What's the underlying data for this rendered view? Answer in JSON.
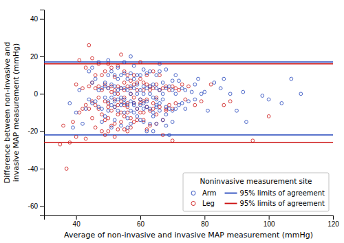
{
  "chart_data": {
    "type": "scatter",
    "xlabel": "Average of non-invasive and invasive MAP measurement (mmHg)",
    "ylabel": "Difference between non-invasive and\ninvasive MAP measurement (mmHg)",
    "xlim": [
      30,
      120
    ],
    "ylim": [
      -65,
      45
    ],
    "xticks": [
      40,
      60,
      80,
      100,
      120
    ],
    "yticks": [
      -60,
      -40,
      -20,
      0,
      20,
      40
    ],
    "grid": false,
    "legend": "lower right",
    "legend_title": "Noninvasive measurement site",
    "series": [
      {
        "name": "Arm",
        "type": "scatter",
        "marker": "circle",
        "color": "#2244BB",
        "x": [
          38,
          39,
          40,
          41,
          42,
          43,
          44,
          44,
          45,
          45,
          45,
          46,
          46,
          47,
          47,
          47,
          48,
          48,
          48,
          49,
          49,
          49,
          49,
          50,
          50,
          50,
          50,
          50,
          51,
          51,
          51,
          51,
          51,
          52,
          52,
          52,
          52,
          52,
          52,
          53,
          53,
          53,
          53,
          53,
          54,
          54,
          54,
          54,
          54,
          55,
          55,
          55,
          55,
          55,
          55,
          56,
          56,
          56,
          56,
          56,
          57,
          57,
          57,
          57,
          57,
          57,
          57,
          58,
          58,
          58,
          58,
          58,
          58,
          59,
          59,
          59,
          59,
          59,
          60,
          60,
          60,
          60,
          60,
          61,
          61,
          61,
          61,
          61,
          61,
          62,
          62,
          62,
          62,
          62,
          63,
          63,
          63,
          63,
          63,
          64,
          64,
          64,
          64,
          64,
          65,
          65,
          65,
          65,
          65,
          65,
          66,
          66,
          66,
          66,
          66,
          67,
          67,
          67,
          67,
          68,
          68,
          68,
          68,
          68,
          69,
          69,
          69,
          70,
          70,
          70,
          70,
          71,
          71,
          71,
          72,
          72,
          73,
          73,
          74,
          74,
          75,
          76,
          77,
          77,
          78,
          79,
          80,
          81,
          83,
          85,
          86,
          88,
          90,
          92,
          93,
          98,
          100,
          104,
          107,
          110
        ],
        "values": [
          -5,
          -18,
          -10,
          2,
          -16,
          -8,
          12,
          -3,
          -5,
          6,
          14,
          -4,
          8,
          17,
          2,
          -7,
          -8,
          3,
          -15,
          4,
          -12,
          6,
          -2,
          -9,
          -4,
          3,
          10,
          18,
          -6,
          -2,
          5,
          12,
          -18,
          0,
          -7,
          -14,
          4,
          10,
          -4,
          -9,
          2,
          8,
          14,
          -3,
          -6,
          -17,
          3,
          10,
          -2,
          -5,
          3,
          11,
          -3,
          -10,
          17,
          -6,
          2,
          -13,
          8,
          -18,
          -9,
          4,
          -16,
          11,
          0,
          -4,
          20,
          -10,
          3,
          -5,
          -6,
          15,
          8,
          -12,
          0,
          5,
          -8,
          10,
          -14,
          2,
          -6,
          10,
          -3,
          -8,
          4,
          13,
          -5,
          0,
          -15,
          -7,
          3,
          11,
          -4,
          -20,
          -8,
          4,
          -16,
          12,
          0,
          -2,
          -10,
          5,
          -20,
          -12,
          -6,
          3,
          10,
          -3,
          -16,
          -7,
          2,
          -9,
          16,
          -5,
          12,
          -14,
          0,
          6,
          -3,
          -11,
          3,
          -7,
          -17,
          13,
          -8,
          4,
          -22,
          -9,
          2,
          -15,
          7,
          -8,
          0,
          10,
          -6,
          7,
          -5,
          3,
          -8,
          2,
          -4,
          1,
          5,
          -3,
          8,
          0,
          1,
          -9,
          6,
          3,
          8,
          0,
          -9,
          1,
          -15,
          -1,
          -3,
          -5,
          8,
          0
        ]
      },
      {
        "name": "95% limits of agreement",
        "type": "hline",
        "line_style": "solid",
        "color": "#2244BB",
        "values": [
          17,
          -22
        ]
      },
      {
        "name": "Leg",
        "type": "scatter",
        "marker": "circle",
        "color": "#CC1111",
        "x": [
          35,
          36,
          37,
          38,
          39,
          40,
          40,
          41,
          41,
          42,
          42,
          43,
          43,
          43,
          44,
          44,
          44,
          45,
          45,
          45,
          45,
          46,
          46,
          46,
          46,
          47,
          47,
          47,
          47,
          48,
          48,
          48,
          48,
          49,
          49,
          49,
          49,
          49,
          50,
          50,
          50,
          50,
          50,
          50,
          51,
          51,
          51,
          51,
          51,
          52,
          52,
          52,
          52,
          52,
          52,
          53,
          53,
          53,
          53,
          53,
          53,
          54,
          54,
          54,
          54,
          54,
          55,
          55,
          55,
          55,
          55,
          55,
          55,
          56,
          56,
          56,
          56,
          56,
          56,
          57,
          57,
          57,
          57,
          57,
          58,
          58,
          58,
          58,
          58,
          59,
          59,
          59,
          59,
          60,
          60,
          60,
          60,
          60,
          61,
          61,
          61,
          61,
          61,
          62,
          62,
          62,
          62,
          62,
          63,
          63,
          63,
          63,
          64,
          64,
          64,
          64,
          65,
          65,
          65,
          65,
          66,
          66,
          66,
          67,
          67,
          67,
          68,
          68,
          68,
          69,
          69,
          70,
          70,
          70,
          71,
          71,
          72,
          73,
          74,
          75,
          77,
          79,
          82,
          86,
          88,
          95,
          100
        ],
        "values": [
          -27,
          -17,
          -40,
          -26,
          -15,
          5,
          -23,
          18,
          -10,
          -8,
          3,
          -24,
          -6,
          14,
          26,
          -8,
          4,
          19,
          -4,
          6,
          -13,
          -18,
          3,
          10,
          -6,
          16,
          -2,
          -8,
          4,
          -11,
          2,
          10,
          -20,
          -14,
          5,
          -4,
          12,
          -22,
          -7,
          3,
          16,
          -5,
          -13,
          -20,
          -9,
          4,
          -17,
          14,
          1,
          -7,
          2,
          9,
          -3,
          -16,
          -23,
          -11,
          4,
          -19,
          0,
          15,
          -6,
          -10,
          3,
          -4,
          21,
          -15,
          -12,
          6,
          -2,
          12,
          -6,
          2,
          -19,
          -5,
          -10,
          4,
          10,
          -20,
          -7,
          -13,
          3,
          -18,
          7,
          0,
          -5,
          5,
          -15,
          10,
          -2,
          -8,
          2,
          -14,
          6,
          -3,
          8,
          -10,
          17,
          -5,
          -10,
          2,
          6,
          -4,
          -14,
          -3,
          5,
          -19,
          10,
          -7,
          -9,
          4,
          -17,
          2,
          -8,
          3,
          -5,
          12,
          -11,
          5,
          -2,
          -16,
          -7,
          2,
          10,
          -14,
          3,
          -22,
          -8,
          4,
          -9,
          -6,
          2,
          -8,
          4,
          -25,
          3,
          -5,
          2,
          5,
          -3,
          4,
          -6,
          -4,
          5,
          -6,
          -4,
          -25,
          -12
        ]
      },
      {
        "name": "95% limits of agreement",
        "type": "hline",
        "line_style": "solid",
        "color": "#CC1111",
        "values": [
          16,
          -26
        ]
      }
    ]
  }
}
